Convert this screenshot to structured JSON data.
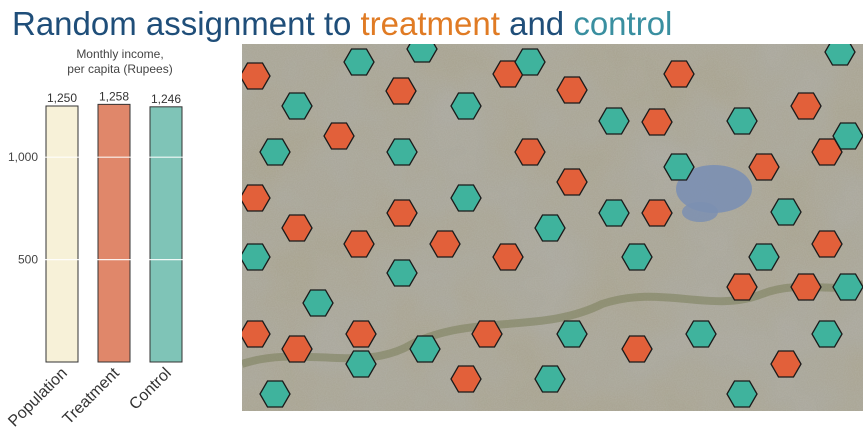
{
  "title": {
    "prefix": "Random assignment to ",
    "treatment_word": "treatment",
    "middle": " and ",
    "control_word": "control"
  },
  "colors": {
    "title": "#1f4e79",
    "treatment": "#e07b24",
    "control": "#3a8fa0",
    "population_bar": "#f7f1d8",
    "treatment_bar": "#e0876a",
    "control_bar": "#7fc4b7",
    "hex_treatment": "#e2603a",
    "hex_control": "#3fb39d"
  },
  "chart_data": {
    "type": "bar",
    "title": "Monthly income,\nper capita (Rupees)",
    "title_lines": [
      "Monthly income,",
      "per capita (Rupees)"
    ],
    "categories": [
      "Population",
      "Treatment",
      "Control"
    ],
    "values": [
      1250,
      1258,
      1246
    ],
    "value_labels": [
      "1,250",
      "1,258",
      "1,246"
    ],
    "yticks": [
      500,
      1000
    ],
    "ytick_labels": [
      "500",
      "1,000"
    ],
    "ylim": [
      0,
      1250
    ],
    "grid": false
  },
  "map": {
    "description_icon": "satellite-map",
    "legend": null
  }
}
